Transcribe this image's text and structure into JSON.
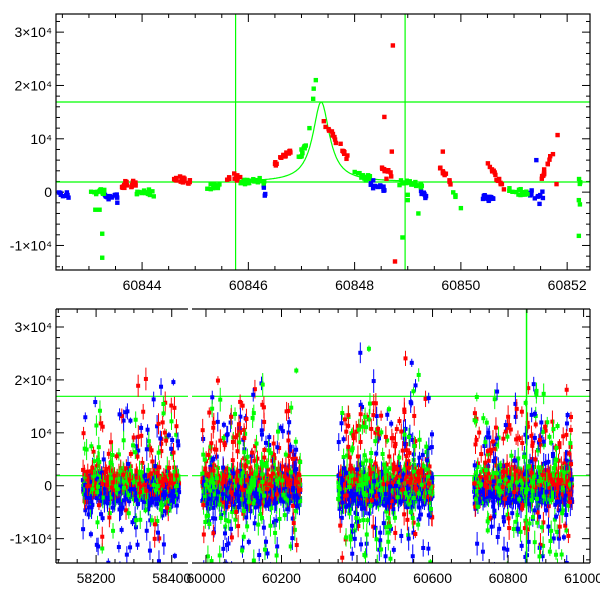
{
  "chart_data": [
    {
      "panel": "zoom",
      "type": "scatter",
      "xlim": [
        60842.38,
        60852.43
      ],
      "ylim": [
        -14600,
        33400
      ],
      "x_ticks": [
        60844,
        60846,
        60848,
        60850,
        60852
      ],
      "x_tick_labels": [
        "60844",
        "60846",
        "60848",
        "60850",
        "60852"
      ],
      "y_ticks": [
        -10000,
        0,
        10000,
        20000,
        30000
      ],
      "y_tick_labels": [
        "-1×10⁴",
        "0",
        "10⁴",
        "2×10⁴",
        "3×10⁴"
      ],
      "hlines": [
        16900,
        1900
      ],
      "vlines": [
        60845.76,
        60848.95
      ],
      "fit": {
        "type": "lorentzian",
        "t0": 60847.37,
        "peak": 16900,
        "baseline": 1900,
        "width": 0.19,
        "color": "#00ff00"
      },
      "series": [
        {
          "name": "blue",
          "color": "#0000ff",
          "groups": [
            [
              60842.42,
              60842.62,
              -300,
              -500,
              10
            ],
            [
              60843.3,
              60843.55,
              -600,
              -1200,
              14
            ],
            [
              60846.28,
              60846.33,
              1500,
              -1000,
              4
            ],
            [
              60848.3,
              60848.6,
              1500,
              300,
              16
            ],
            [
              60849.25,
              60849.35,
              -200,
              -600,
              8
            ],
            [
              60850.4,
              60850.62,
              -800,
              -1400,
              14
            ],
            [
              60851.3,
              60851.55,
              -400,
              -700,
              12
            ]
          ],
          "points": [
            [
              60851.42,
              6000
            ],
            [
              60851.48,
              -2200
            ]
          ]
        },
        {
          "name": "green",
          "color": "#00ff00",
          "groups": [
            [
              60843.0,
              60843.3,
              0,
              -300,
              14
            ],
            [
              60843.9,
              60844.22,
              -100,
              -300,
              14
            ],
            [
              60845.2,
              60845.5,
              600,
              1200,
              12
            ],
            [
              60845.8,
              60846.3,
              1900,
              2300,
              22
            ],
            [
              60846.9,
              60847.1,
              5500,
              9000,
              10
            ],
            [
              60848.0,
              60848.3,
              3500,
              2500,
              14
            ],
            [
              60848.8,
              60849.3,
              2000,
              1200,
              18
            ],
            [
              60849.85,
              60849.92,
              -100,
              -500,
              3
            ],
            [
              60850.9,
              60851.3,
              200,
              -400,
              16
            ],
            [
              60852.22,
              60852.26,
              2500,
              1000,
              3
            ]
          ],
          "points": [
            [
              60843.12,
              -3300
            ],
            [
              60843.2,
              -3300
            ],
            [
              60843.25,
              -7800
            ],
            [
              60843.25,
              -12300
            ],
            [
              60847.15,
              12000
            ],
            [
              60847.22,
              17500
            ],
            [
              60847.23,
              19400
            ],
            [
              60847.27,
              21000
            ],
            [
              60847.0,
              8000
            ],
            [
              60849.0,
              -1500
            ],
            [
              60849.2,
              -4000
            ],
            [
              60848.9,
              -8500
            ],
            [
              60849.0,
              -500
            ],
            [
              60850.0,
              -3000
            ],
            [
              60852.22,
              -1500
            ],
            [
              60852.24,
              -2300
            ],
            [
              60852.22,
              -8200
            ]
          ]
        },
        {
          "name": "red",
          "color": "#ff0000",
          "groups": [
            [
              60843.6,
              60843.9,
              1000,
              1700,
              18
            ],
            [
              60844.6,
              60844.9,
              2500,
              2000,
              18
            ],
            [
              60845.6,
              60845.85,
              2800,
              2400,
              12
            ],
            [
              60846.5,
              60846.8,
              5500,
              7500,
              16
            ],
            [
              60847.45,
              60847.9,
              12500,
              6000,
              18
            ],
            [
              60848.5,
              60848.75,
              4500,
              3500,
              8
            ],
            [
              60849.6,
              60849.82,
              5000,
              1500,
              12
            ],
            [
              60850.5,
              60850.82,
              5200,
              800,
              16
            ],
            [
              60851.5,
              60851.78,
              2300,
              8500,
              12
            ]
          ],
          "points": [
            [
              60847.42,
              13300
            ],
            [
              60848.56,
              14100
            ],
            [
              60848.72,
              27500
            ],
            [
              60848.7,
              7600
            ],
            [
              60848.6,
              2500
            ],
            [
              60848.76,
              -13000
            ],
            [
              60849.66,
              7600
            ],
            [
              60851.82,
              10700
            ],
            [
              60851.8,
              1500
            ]
          ]
        }
      ]
    },
    {
      "panel": "full",
      "type": "scatter",
      "ylim": [
        -14600,
        33400
      ],
      "y_ticks": [
        -10000,
        0,
        10000,
        20000,
        30000
      ],
      "y_tick_labels": [
        "-1×10⁴",
        "0",
        "10⁴",
        "2×10⁴",
        "3×10⁴"
      ],
      "x_segments": [
        {
          "xlim": [
            58094,
            58443
          ],
          "ticks": [
            58200,
            58400
          ],
          "tick_labels": [
            "58200",
            "58400"
          ]
        },
        {
          "xlim": [
            59963,
            61017
          ],
          "ticks": [
            60000,
            60200,
            60400,
            60600,
            60800,
            61000
          ],
          "tick_labels": [
            "60000",
            "60200",
            "60400",
            "60600",
            "60800",
            "61000"
          ]
        }
      ],
      "hlines": [
        16900,
        1900
      ],
      "vlines": [
        60848.95
      ],
      "seasons": [
        {
          "range": [
            58165,
            58420
          ],
          "n_core": 260,
          "n_tail": 70
        },
        {
          "range": [
            59990,
            60250
          ],
          "n_core": 300,
          "n_tail": 110
        },
        {
          "range": [
            60350,
            60600
          ],
          "n_core": 300,
          "n_tail": 110
        },
        {
          "range": [
            60710,
            60970
          ],
          "n_core": 300,
          "n_tail": 120
        }
      ],
      "series": [
        {
          "name": "red",
          "color": "#ff0000",
          "core_mean": 500,
          "core_sd": 1200,
          "tail_mean": 4000,
          "tail_sd": 7000
        },
        {
          "name": "blue",
          "color": "#0000ff",
          "core_mean": -1200,
          "core_sd": 1400,
          "tail_mean": 0,
          "tail_sd": 9000
        },
        {
          "name": "green",
          "color": "#00ff00",
          "core_mean": 0,
          "core_sd": 1300,
          "tail_mean": 0,
          "tail_sd": 8000
        }
      ]
    }
  ]
}
